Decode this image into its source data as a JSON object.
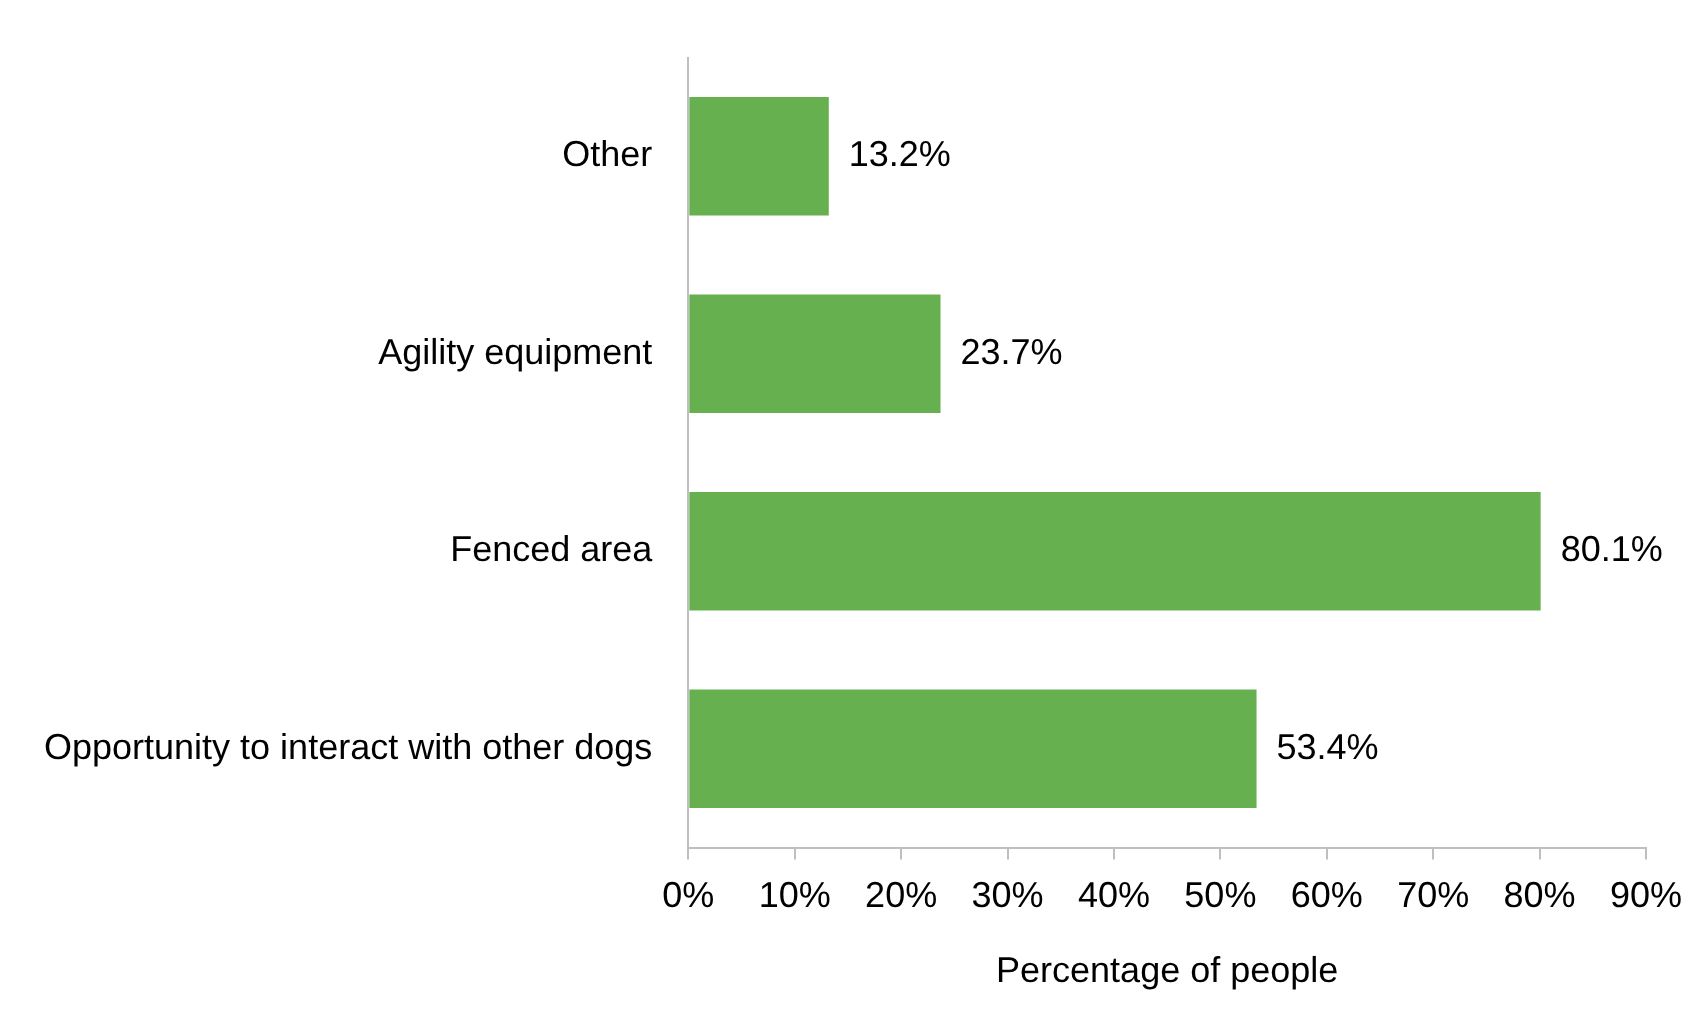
{
  "chart_data": {
    "type": "bar",
    "orientation": "horizontal",
    "xlabel": "Percentage of people",
    "categories": [
      "Other",
      "Agility equipment",
      "Fenced area",
      "Opportunity to interact with other dogs"
    ],
    "values": [
      13.2,
      23.7,
      80.1,
      53.4
    ],
    "value_labels": [
      "13.2%",
      "23.7%",
      "80.1%",
      "53.4%"
    ],
    "color": "#66b04f",
    "xlim": [
      0,
      90
    ],
    "xticks": [
      {
        "value": 0,
        "label": "0%"
      },
      {
        "value": 10,
        "label": "10%"
      },
      {
        "value": 20,
        "label": "20%"
      },
      {
        "value": 30,
        "label": "30%"
      },
      {
        "value": 40,
        "label": "40%"
      },
      {
        "value": 50,
        "label": "50%"
      },
      {
        "value": 60,
        "label": "60%"
      },
      {
        "value": 70,
        "label": "70%"
      },
      {
        "value": 80,
        "label": "80%"
      },
      {
        "value": 90,
        "label": "90%"
      }
    ],
    "grid": false,
    "legend": false
  }
}
